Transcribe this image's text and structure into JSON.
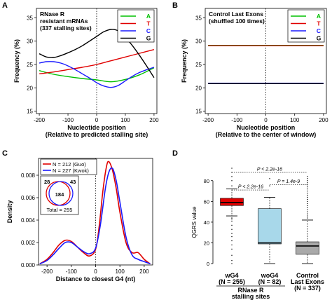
{
  "chart_data": [
    {
      "panel": "A",
      "type": "line",
      "title_lines": [
        "RNase R",
        "resistant mRNAs",
        "(337 stalling sites)"
      ],
      "xlabel": "Nucleotide position",
      "xlabel2": "(Relative to predicted stalling site)",
      "ylabel": "Frequency (%)",
      "xlim": [
        -210,
        210
      ],
      "ylim": [
        14.5,
        37
      ],
      "xticks": [
        -200,
        -100,
        0,
        100,
        200
      ],
      "yticks": [
        15,
        20,
        25,
        30,
        35
      ],
      "legend_position": "top-right",
      "series": [
        {
          "name": "A",
          "color": "#00c000",
          "x": [
            -200,
            -150,
            -100,
            -50,
            0,
            50,
            100,
            150,
            200
          ],
          "y": [
            23.7,
            22.9,
            22.4,
            22.0,
            21.7,
            21.3,
            21.8,
            22.8,
            24.3
          ]
        },
        {
          "name": "T",
          "color": "#e00000",
          "x": [
            -200,
            -150,
            -100,
            -50,
            0,
            50,
            100,
            150,
            200
          ],
          "y": [
            23.0,
            23.4,
            23.9,
            24.4,
            25.0,
            25.8,
            26.6,
            27.4,
            28.2
          ]
        },
        {
          "name": "C",
          "color": "#1a1aff",
          "x": [
            -200,
            -175,
            -150,
            -125,
            -100,
            -75,
            -50,
            -25,
            0,
            25,
            50,
            75,
            100,
            125,
            150,
            175,
            200
          ],
          "y": [
            25.3,
            25.6,
            25.6,
            25.3,
            24.7,
            23.9,
            23.0,
            22.1,
            21.1,
            20.4,
            20.1,
            20.5,
            21.5,
            22.5,
            23.3,
            23.9,
            24.4
          ]
        },
        {
          "name": "G",
          "color": "#000000",
          "x": [
            -200,
            -175,
            -150,
            -125,
            -100,
            -75,
            -50,
            -25,
            0,
            25,
            50,
            75,
            100,
            125,
            150,
            175,
            200
          ],
          "y": [
            27.3,
            26.6,
            26.5,
            26.9,
            27.5,
            28.2,
            29.0,
            30.0,
            31.0,
            32.0,
            32.5,
            32.2,
            30.8,
            29.0,
            26.9,
            24.6,
            22.2
          ]
        }
      ]
    },
    {
      "panel": "B",
      "type": "line",
      "title_lines": [
        "Control Last Exons",
        "(shuffled 100 times)"
      ],
      "xlabel": "Nucleotide position",
      "xlabel2": "(Relative to the center of window)",
      "ylabel": "Frequency (%)",
      "xlim": [
        -210,
        210
      ],
      "ylim": [
        14.5,
        37
      ],
      "xticks": [
        -200,
        -100,
        0,
        100,
        200
      ],
      "yticks": [
        15,
        20,
        25,
        30,
        35
      ],
      "legend_position": "top-right",
      "series": [
        {
          "name": "A",
          "color": "#00c000",
          "x": [
            -200,
            200
          ],
          "y": [
            29.1,
            29.1
          ]
        },
        {
          "name": "T",
          "color": "#e00000",
          "x": [
            -200,
            200
          ],
          "y": [
            29.0,
            29.0
          ]
        },
        {
          "name": "C",
          "color": "#1a1aff",
          "x": [
            -200,
            200
          ],
          "y": [
            21.0,
            21.0
          ]
        },
        {
          "name": "G",
          "color": "#000000",
          "x": [
            -200,
            200
          ],
          "y": [
            20.9,
            20.9
          ]
        }
      ]
    },
    {
      "panel": "C",
      "type": "line",
      "xlabel": "Distance to closest G4 (nt)",
      "ylabel": "Density",
      "xlim": [
        -235,
        235
      ],
      "ylim": [
        0,
        0.0095
      ],
      "xticks": [
        -200,
        -100,
        0,
        100,
        200
      ],
      "yticks": [
        0.0,
        0.002,
        0.004,
        0.006,
        0.008
      ],
      "ytick_labels": [
        "0.000",
        "0.002",
        "0.004",
        "0.006",
        "0.008"
      ],
      "legend_position": "top-left",
      "venn": {
        "left_only": "28",
        "overlap": "184",
        "right_only": "43",
        "total": "Total = 255"
      },
      "series": [
        {
          "name": "N = 212 (Guo)",
          "color": "#e00000",
          "x": [
            -230,
            -200,
            -175,
            -150,
            -125,
            -100,
            -75,
            -50,
            -25,
            0,
            15,
            30,
            45,
            55,
            70,
            85,
            100,
            125,
            150,
            175,
            200,
            225
          ],
          "y": [
            0.0001,
            0.0005,
            0.0011,
            0.0018,
            0.0022,
            0.0021,
            0.0016,
            0.0011,
            0.0008,
            0.0014,
            0.0035,
            0.0066,
            0.0088,
            0.0092,
            0.0084,
            0.0068,
            0.0047,
            0.002,
            0.0011,
            0.0011,
            0.0005,
            0.0001
          ]
        },
        {
          "name": "N = 227 (Kwok)",
          "color": "#1a1aff",
          "x": [
            -230,
            -200,
            -175,
            -150,
            -125,
            -100,
            -75,
            -50,
            -25,
            0,
            20,
            40,
            55,
            70,
            85,
            100,
            125,
            150,
            175,
            200,
            225
          ],
          "y": [
            0.0001,
            0.0004,
            0.0009,
            0.0015,
            0.002,
            0.002,
            0.0016,
            0.0012,
            0.001,
            0.0015,
            0.0036,
            0.0068,
            0.0083,
            0.0086,
            0.0075,
            0.0056,
            0.0025,
            0.0009,
            0.0005,
            0.0003,
            0.0001
          ]
        }
      ]
    },
    {
      "panel": "D",
      "type": "box",
      "ylabel": "QGRS value",
      "ylim": [
        -4,
        92
      ],
      "yticks": [
        0,
        20,
        40,
        60,
        80
      ],
      "group_label_lines": [
        "RNase R",
        "stalling sites"
      ],
      "comparisons": [
        {
          "from": 0,
          "to": 2,
          "label": "P < 2.2e-16",
          "y": 88
        },
        {
          "from": 0,
          "to": 1,
          "label": "P < 2.2e-16",
          "y": 71
        },
        {
          "from": 1,
          "to": 2,
          "label": "P = 1.4e-9",
          "y": 76
        }
      ],
      "boxes": [
        {
          "label": "wG4",
          "n_label": "(N = 255)",
          "color": "#e00000",
          "whisker_low": 46,
          "q1": 56,
          "median": 59,
          "q3": 63,
          "whisker_high": 72,
          "outliers": [
            0,
            3,
            8,
            14,
            18,
            22,
            26,
            29,
            33,
            37,
            41,
            43,
            44,
            75,
            80,
            84,
            88,
            92
          ]
        },
        {
          "label": "woG4",
          "n_label": "(N = 82)",
          "color": "#a8d8ea",
          "whisker_low": 0,
          "q1": 19,
          "median": 20,
          "q3": 53,
          "whisker_high": 64,
          "outliers": [
            75,
            82
          ]
        },
        {
          "label": "Control",
          "label2": "Last Exons",
          "n_label": "(N = 337)",
          "color": "#a9a9a9",
          "whisker_low": 0,
          "q1": 9,
          "median": 17,
          "q3": 21,
          "whisker_high": 42,
          "outliers": [
            44,
            46,
            48,
            50,
            52,
            54,
            56,
            58,
            60,
            62,
            64,
            66,
            68,
            70,
            72,
            74,
            76,
            78,
            80,
            82,
            84
          ]
        }
      ]
    }
  ]
}
